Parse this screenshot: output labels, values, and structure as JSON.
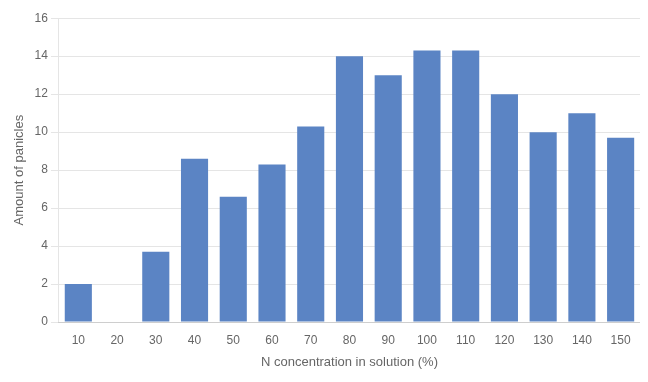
{
  "chart_data": {
    "type": "bar",
    "xlabel": "N concentration in solution (%)",
    "ylabel": "Amount of panicles",
    "categories": [
      10,
      20,
      30,
      40,
      50,
      60,
      70,
      80,
      90,
      100,
      110,
      120,
      130,
      140,
      150
    ],
    "values": [
      2.0,
      0,
      3.7,
      8.6,
      6.6,
      8.3,
      10.3,
      14.0,
      13.0,
      14.3,
      14.3,
      12.0,
      10.0,
      11.0,
      9.7
    ],
    "color": "#5b84c4",
    "ylim": [
      0,
      16
    ],
    "yticks": [
      0,
      2,
      4,
      6,
      8,
      10,
      12,
      14,
      16
    ],
    "grid": true
  }
}
